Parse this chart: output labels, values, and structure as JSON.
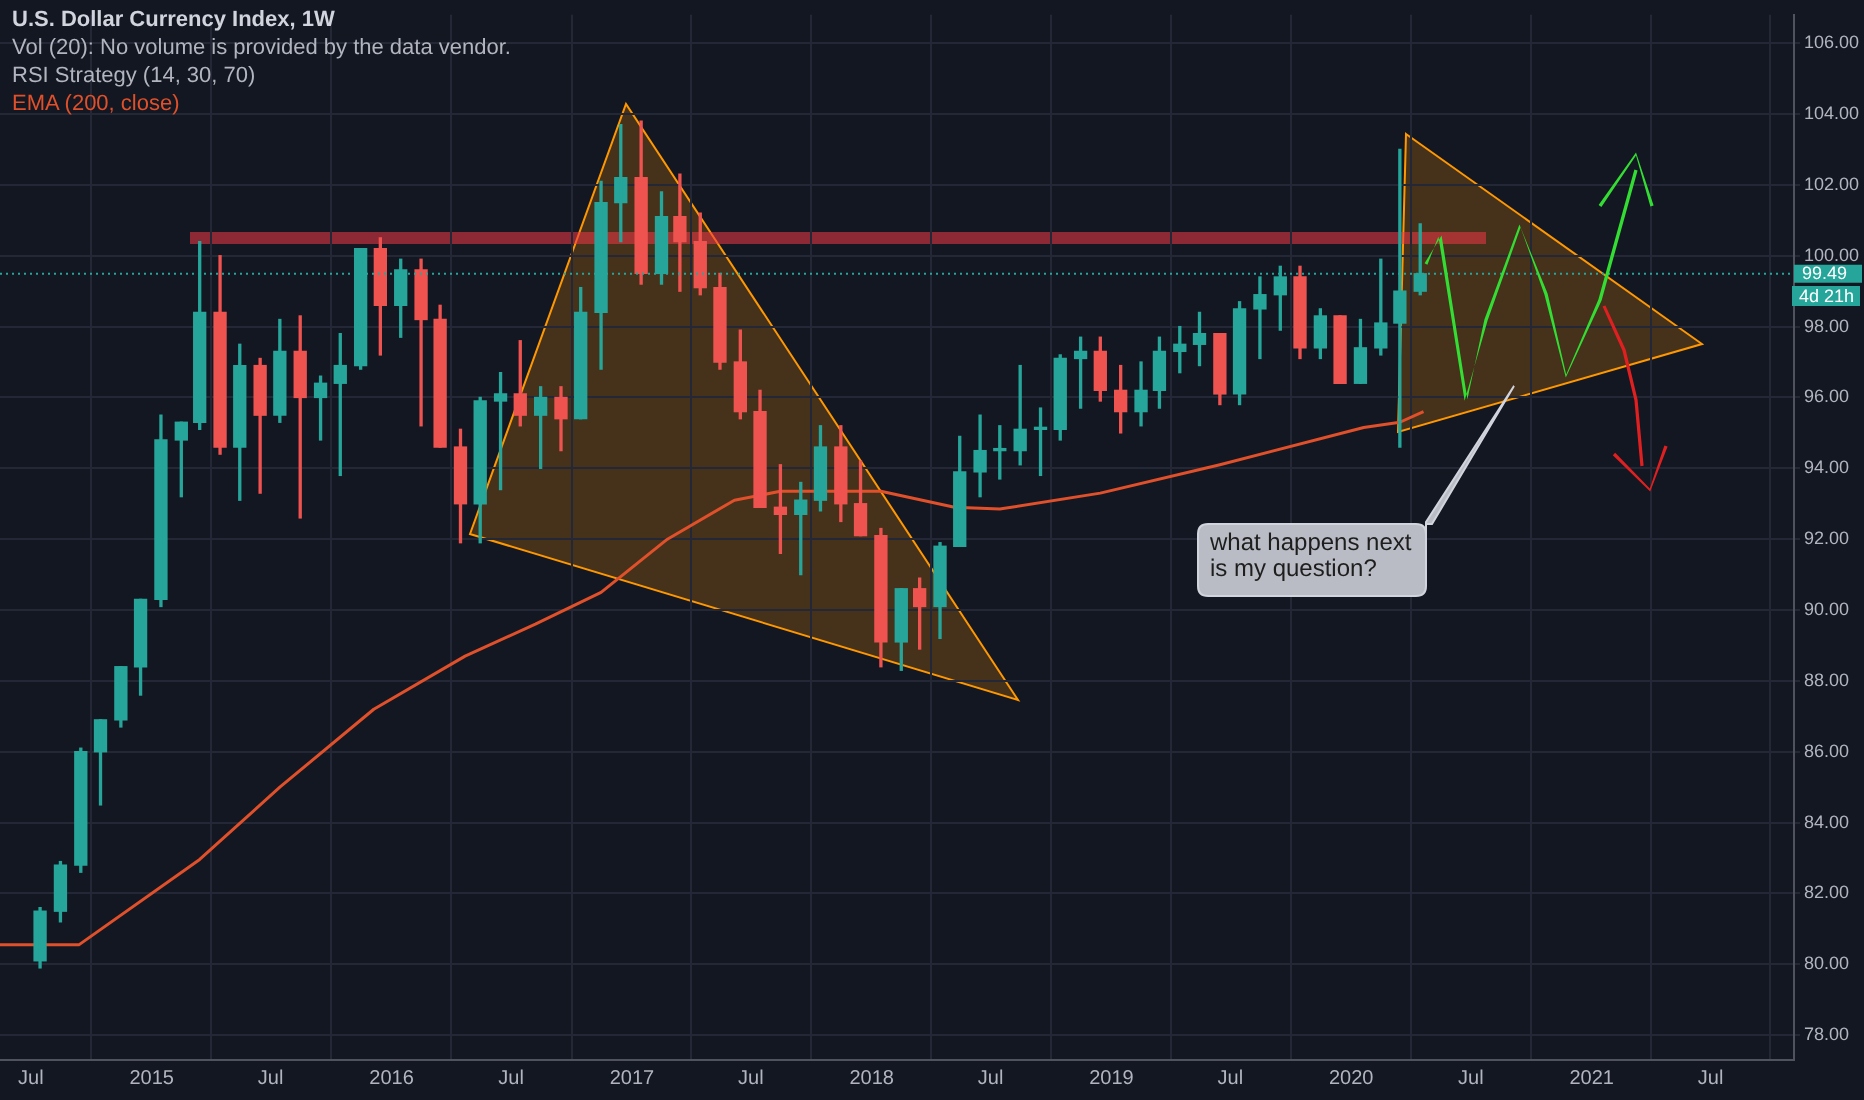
{
  "chart_data": {
    "type": "candlestick",
    "title": "U.S. Dollar Currency Index, 1W",
    "annotations": [
      "Vol (20): No volume is provided by the data vendor.",
      "RSI Strategy (14, 30, 70)",
      "what happens next is my question?",
      "4d 21h"
    ],
    "x": [
      "2014-07-15",
      "2014-08-15",
      "2014-09-15",
      "2014-10-15",
      "2014-11-15",
      "2014-12-15",
      "2015-01-15",
      "2015-02-15",
      "2015-03-15",
      "2015-04-15",
      "2015-05-15",
      "2015-06-15",
      "2015-07-15",
      "2015-08-15",
      "2015-09-15",
      "2015-10-15",
      "2015-11-15",
      "2015-12-15",
      "2016-01-15",
      "2016-02-15",
      "2016-03-15",
      "2016-04-15",
      "2016-05-15",
      "2016-06-15",
      "2016-07-15",
      "2016-08-15",
      "2016-09-15",
      "2016-10-15",
      "2016-11-15",
      "2016-12-15",
      "2017-01-15",
      "2017-02-15",
      "2017-03-15",
      "2017-04-15",
      "2017-05-15",
      "2017-06-15",
      "2017-07-15",
      "2017-08-15",
      "2017-09-15",
      "2017-10-15",
      "2017-11-15",
      "2017-12-15",
      "2018-01-15",
      "2018-02-15",
      "2018-03-15",
      "2018-04-15",
      "2018-05-15",
      "2018-06-15",
      "2018-07-15",
      "2018-08-15",
      "2018-09-15",
      "2018-10-15",
      "2018-11-15",
      "2018-12-15",
      "2019-01-15",
      "2019-02-15",
      "2019-03-15",
      "2019-04-15",
      "2019-05-15",
      "2019-06-15",
      "2019-07-15",
      "2019-08-15",
      "2019-09-15",
      "2019-10-15",
      "2019-11-15",
      "2019-12-15",
      "2020-01-15",
      "2020-02-15",
      "2020-03-15",
      "2020-04-15"
    ],
    "ohlc": [
      [
        80.1,
        81.6,
        79.9,
        81.5
      ],
      [
        81.5,
        82.9,
        81.2,
        82.8
      ],
      [
        82.8,
        86.1,
        82.6,
        86.0
      ],
      [
        86.0,
        86.9,
        84.5,
        86.9
      ],
      [
        86.9,
        88.4,
        86.7,
        88.4
      ],
      [
        88.4,
        90.3,
        87.6,
        90.3
      ],
      [
        90.3,
        95.5,
        90.1,
        94.8
      ],
      [
        94.8,
        95.3,
        93.2,
        95.3
      ],
      [
        95.3,
        100.4,
        95.1,
        98.4
      ],
      [
        98.4,
        100.0,
        94.4,
        94.6
      ],
      [
        94.6,
        97.5,
        93.1,
        96.9
      ],
      [
        96.9,
        97.1,
        93.3,
        95.5
      ],
      [
        95.5,
        98.2,
        95.3,
        97.3
      ],
      [
        97.3,
        98.3,
        92.6,
        96.0
      ],
      [
        96.0,
        96.6,
        94.8,
        96.4
      ],
      [
        96.4,
        97.8,
        93.8,
        96.9
      ],
      [
        96.9,
        100.2,
        96.8,
        100.2
      ],
      [
        100.2,
        100.5,
        97.2,
        98.6
      ],
      [
        98.6,
        99.9,
        97.7,
        99.6
      ],
      [
        99.6,
        99.9,
        95.2,
        98.2
      ],
      [
        98.2,
        98.6,
        94.6,
        94.6
      ],
      [
        94.6,
        95.1,
        91.9,
        93.0
      ],
      [
        93.0,
        96.0,
        91.9,
        95.9
      ],
      [
        95.9,
        96.7,
        93.4,
        96.1
      ],
      [
        96.1,
        97.6,
        95.2,
        95.5
      ],
      [
        95.5,
        96.3,
        94.0,
        96.0
      ],
      [
        96.0,
        96.3,
        94.5,
        95.4
      ],
      [
        95.4,
        99.1,
        95.4,
        98.4
      ],
      [
        98.4,
        102.1,
        96.8,
        101.5
      ],
      [
        101.5,
        103.7,
        100.4,
        102.2
      ],
      [
        102.2,
        103.8,
        99.2,
        99.5
      ],
      [
        99.5,
        101.8,
        99.2,
        101.1
      ],
      [
        101.1,
        102.3,
        99.0,
        100.4
      ],
      [
        100.4,
        101.2,
        98.9,
        99.1
      ],
      [
        99.1,
        99.5,
        96.8,
        97.0
      ],
      [
        97.0,
        97.9,
        95.4,
        95.6
      ],
      [
        95.6,
        96.2,
        92.9,
        92.9
      ],
      [
        92.9,
        94.1,
        91.6,
        92.7
      ],
      [
        92.7,
        93.6,
        91.0,
        93.1
      ],
      [
        93.1,
        95.2,
        92.8,
        94.6
      ],
      [
        94.6,
        95.2,
        92.5,
        93.0
      ],
      [
        93.0,
        94.2,
        92.1,
        92.1
      ],
      [
        92.1,
        92.3,
        88.4,
        89.1
      ],
      [
        89.1,
        90.6,
        88.3,
        90.6
      ],
      [
        90.6,
        90.9,
        88.9,
        90.1
      ],
      [
        90.1,
        91.9,
        89.2,
        91.8
      ],
      [
        91.8,
        94.9,
        91.8,
        93.9
      ],
      [
        93.9,
        95.5,
        93.2,
        94.5
      ],
      [
        94.5,
        95.2,
        93.7,
        94.5
      ],
      [
        94.5,
        96.9,
        94.1,
        95.1
      ],
      [
        95.1,
        95.7,
        93.8,
        95.1
      ],
      [
        95.1,
        97.2,
        94.8,
        97.1
      ],
      [
        97.1,
        97.7,
        95.7,
        97.3
      ],
      [
        97.3,
        97.7,
        95.9,
        96.2
      ],
      [
        96.2,
        96.9,
        95.0,
        95.6
      ],
      [
        95.6,
        97.0,
        95.2,
        96.2
      ],
      [
        96.2,
        97.7,
        95.7,
        97.3
      ],
      [
        97.3,
        98.0,
        96.7,
        97.5
      ],
      [
        97.5,
        98.4,
        96.9,
        97.8
      ],
      [
        97.8,
        97.8,
        95.8,
        96.1
      ],
      [
        96.1,
        98.7,
        95.8,
        98.5
      ],
      [
        98.5,
        99.4,
        97.1,
        98.9
      ],
      [
        98.9,
        99.7,
        97.9,
        99.4
      ],
      [
        99.4,
        99.7,
        97.1,
        97.4
      ],
      [
        97.4,
        98.5,
        97.1,
        98.3
      ],
      [
        98.3,
        98.3,
        96.4,
        96.4
      ],
      [
        96.4,
        98.2,
        96.4,
        97.4
      ],
      [
        97.4,
        99.9,
        97.2,
        98.1
      ],
      [
        98.1,
        103.0,
        94.6,
        99.0
      ],
      [
        99.0,
        100.9,
        98.9,
        99.49
      ]
    ],
    "colors": [
      "#26a69a",
      "#26a69a",
      "#26a69a",
      "#26a69a",
      "#26a69a",
      "#26a69a",
      "#26a69a",
      "#26a69a",
      "#26a69a",
      "#ef5350",
      "#26a69a",
      "#ef5350",
      "#26a69a",
      "#ef5350",
      "#26a69a",
      "#26a69a",
      "#26a69a",
      "#ef5350",
      "#26a69a",
      "#ef5350",
      "#ef5350",
      "#ef5350",
      "#26a69a",
      "#26a69a",
      "#ef5350",
      "#26a69a",
      "#ef5350",
      "#26a69a",
      "#26a69a",
      "#26a69a",
      "#ef5350",
      "#26a69a",
      "#ef5350",
      "#ef5350",
      "#ef5350",
      "#ef5350",
      "#ef5350",
      "#ef5350",
      "#26a69a",
      "#26a69a",
      "#ef5350",
      "#ef5350",
      "#ef5350",
      "#26a69a",
      "#ef5350",
      "#26a69a",
      "#26a69a",
      "#26a69a",
      "#26a69a",
      "#26a69a",
      "#26a69a",
      "#26a69a",
      "#26a69a",
      "#ef5350",
      "#ef5350",
      "#26a69a",
      "#26a69a",
      "#26a69a",
      "#26a69a",
      "#ef5350",
      "#26a69a",
      "#26a69a",
      "#26a69a",
      "#ef5350",
      "#26a69a",
      "#ef5350",
      "#26a69a",
      "#26a69a",
      "#26a69a",
      "#26a69a"
    ],
    "series": [
      {
        "name": "EMA (200, close)",
        "type": "line",
        "color": "#e0502a",
        "x": [
          "2014-05-15",
          "2014-09-12",
          "2015-03-15",
          "2015-07-15",
          "2015-12-05",
          "2016-04-22",
          "2016-08-07",
          "2016-11-15",
          "2017-02-24",
          "2017-06-06",
          "2017-08-15",
          "2018-01-15",
          "2018-05-07",
          "2018-07-15",
          "2018-12-15",
          "2019-06-15",
          "2020-01-20",
          "2020-03-15",
          "2020-04-20"
        ],
        "values": [
          80.55,
          80.55,
          82.96,
          85.0,
          87.2,
          88.7,
          89.6,
          90.5,
          92.0,
          93.1,
          93.35,
          93.35,
          92.9,
          92.85,
          93.3,
          94.1,
          95.15,
          95.3,
          95.6
        ]
      }
    ],
    "xlim": [
      "2014-05-15",
      "2021-11-05"
    ],
    "xticks": [
      {
        "value": "2014-07",
        "label": "Jul"
      },
      {
        "value": "2015",
        "label": "2015"
      },
      {
        "value": "2015-07",
        "label": "Jul"
      },
      {
        "value": "2016",
        "label": "2016"
      },
      {
        "value": "2016-07",
        "label": "Jul"
      },
      {
        "value": "2017",
        "label": "2017"
      },
      {
        "value": "2017-07",
        "label": "Jul"
      },
      {
        "value": "2018",
        "label": "2018"
      },
      {
        "value": "2018-07",
        "label": "Jul"
      },
      {
        "value": "2019",
        "label": "2019"
      },
      {
        "value": "2019-07",
        "label": "Jul"
      },
      {
        "value": "2020",
        "label": "2020"
      },
      {
        "value": "2020-07",
        "label": "Jul"
      },
      {
        "value": "2021",
        "label": "2021"
      },
      {
        "value": "2021-07",
        "label": "Jul"
      }
    ],
    "ylim": [
      77.3,
      106.8
    ],
    "yticks": [
      {
        "value": 78,
        "label": "78.00"
      },
      {
        "value": 80,
        "label": "80.00"
      },
      {
        "value": 82,
        "label": "82.00"
      },
      {
        "value": 84,
        "label": "84.00"
      },
      {
        "value": 86,
        "label": "86.00"
      },
      {
        "value": 88,
        "label": "88.00"
      },
      {
        "value": 90,
        "label": "90.00"
      },
      {
        "value": 92,
        "label": "92.00"
      },
      {
        "value": 94,
        "label": "94.00"
      },
      {
        "value": 96,
        "label": "96.00"
      },
      {
        "value": 98,
        "label": "98.00"
      },
      {
        "value": 100,
        "label": "100.00"
      },
      {
        "value": 102,
        "label": "102.00"
      },
      {
        "value": 104,
        "label": "104.00"
      },
      {
        "value": 106,
        "label": "106.00"
      }
    ],
    "ref_lines": [
      {
        "axis": "y",
        "value": 99.49,
        "label": "99.49",
        "color": "#26a69a",
        "line_style": "dotted"
      }
    ],
    "grid": true,
    "legend": "top left"
  }
}
